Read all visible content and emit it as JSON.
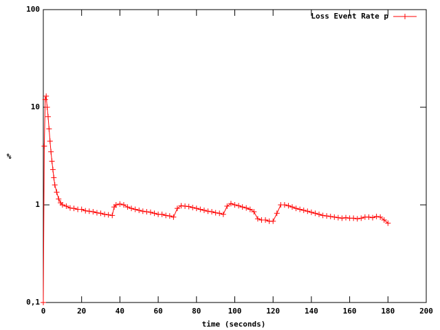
{
  "chart_data": {
    "type": "line",
    "xlabel": "time (seconds)",
    "ylabel": "%",
    "xlim": [
      0,
      200
    ],
    "xticks": [
      0,
      20,
      40,
      60,
      80,
      100,
      120,
      140,
      160,
      180,
      200
    ],
    "ylim": [
      0.1,
      100
    ],
    "yticks": [
      {
        "value": 0.1,
        "label": "0,1"
      },
      1,
      10,
      100
    ],
    "log_y": true,
    "legend_position": "top-right",
    "series": [
      {
        "name": "Loss Event Rate p",
        "color": "#ff0000",
        "x": [
          0,
          0.5,
          1,
          1.5,
          2,
          2.5,
          3,
          3.5,
          4,
          4.5,
          5,
          5.5,
          6,
          7,
          8,
          9,
          10,
          12,
          14,
          16,
          18,
          20,
          22,
          24,
          26,
          28,
          30,
          32,
          34,
          36,
          37,
          38,
          40,
          42,
          44,
          46,
          48,
          50,
          52,
          54,
          56,
          58,
          60,
          62,
          64,
          66,
          68,
          70,
          72,
          74,
          76,
          78,
          80,
          82,
          84,
          86,
          88,
          90,
          92,
          94,
          96,
          98,
          100,
          102,
          104,
          106,
          108,
          110,
          112,
          114,
          116,
          118,
          120,
          122,
          124,
          126,
          128,
          130,
          132,
          134,
          136,
          138,
          140,
          142,
          144,
          146,
          148,
          150,
          152,
          154,
          156,
          158,
          160,
          162,
          164,
          166,
          168,
          170,
          172,
          174,
          176,
          178,
          180
        ],
        "values": [
          0.1,
          4,
          12,
          13,
          10,
          8,
          6,
          4.5,
          3.5,
          2.8,
          2.3,
          1.9,
          1.6,
          1.35,
          1.15,
          1.05,
          1.0,
          0.97,
          0.93,
          0.92,
          0.9,
          0.9,
          0.87,
          0.86,
          0.85,
          0.83,
          0.82,
          0.8,
          0.79,
          0.78,
          0.95,
          1.0,
          1.02,
          1.0,
          0.95,
          0.92,
          0.9,
          0.88,
          0.86,
          0.85,
          0.84,
          0.82,
          0.8,
          0.8,
          0.78,
          0.77,
          0.75,
          0.92,
          0.98,
          0.97,
          0.96,
          0.94,
          0.92,
          0.9,
          0.88,
          0.86,
          0.85,
          0.83,
          0.82,
          0.8,
          0.97,
          1.03,
          1.0,
          0.98,
          0.95,
          0.93,
          0.9,
          0.85,
          0.72,
          0.7,
          0.7,
          0.68,
          0.68,
          0.82,
          1.0,
          1.0,
          0.98,
          0.95,
          0.92,
          0.9,
          0.88,
          0.86,
          0.84,
          0.82,
          0.8,
          0.78,
          0.77,
          0.76,
          0.75,
          0.74,
          0.73,
          0.74,
          0.73,
          0.73,
          0.72,
          0.73,
          0.75,
          0.75,
          0.74,
          0.76,
          0.75,
          0.7,
          0.65
        ]
      }
    ]
  }
}
